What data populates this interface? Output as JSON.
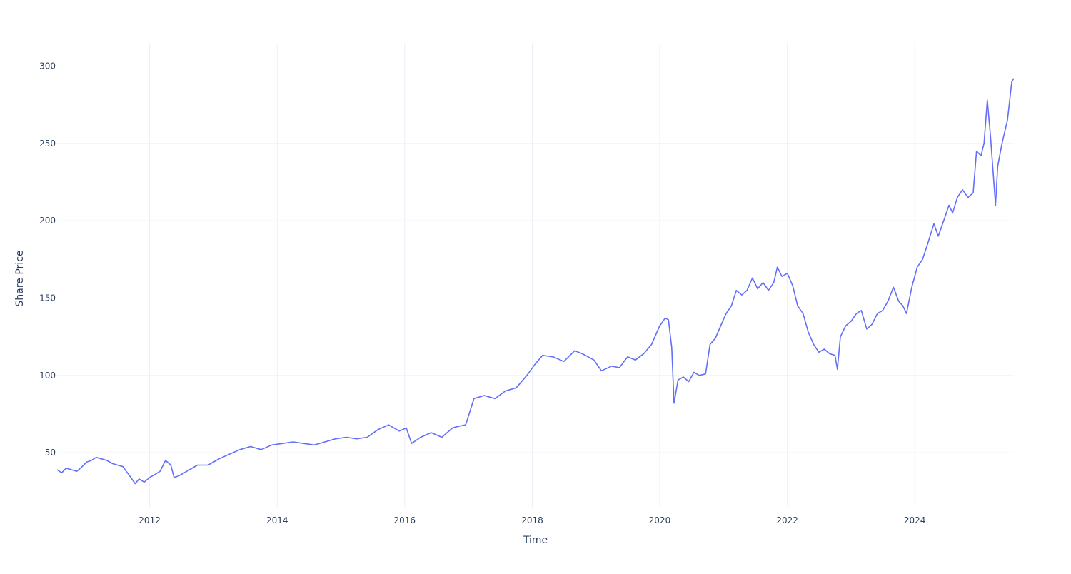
{
  "chart_data": {
    "type": "line",
    "title": "",
    "xlabel": "Time",
    "ylabel": "Share Price",
    "x_range": [
      "2010-07-20",
      "2025-07-22"
    ],
    "ylim": [
      15,
      315
    ],
    "x_ticks": [
      "2012",
      "2014",
      "2016",
      "2018",
      "2020",
      "2022",
      "2024"
    ],
    "y_ticks": [
      50,
      100,
      150,
      200,
      250,
      300
    ],
    "grid": true,
    "legend": "none",
    "line_color": "#636efa",
    "series": [
      {
        "x": [
          "2010-07-20",
          "2010-08-15",
          "2010-09-10",
          "2010-10-10",
          "2010-11-10",
          "2010-12-10",
          "2011-01-05",
          "2011-02-01",
          "2011-03-01",
          "2011-04-01",
          "2011-05-01",
          "2011-06-01",
          "2011-07-01",
          "2011-08-01",
          "2011-08-20",
          "2011-09-15",
          "2011-10-10",
          "2011-11-01",
          "2011-12-01",
          "2012-01-01",
          "2012-02-01",
          "2012-03-01",
          "2012-04-01",
          "2012-05-01",
          "2012-05-20",
          "2012-06-15",
          "2012-08-01",
          "2012-10-01",
          "2012-12-01",
          "2013-02-01",
          "2013-04-01",
          "2013-06-01",
          "2013-08-01",
          "2013-10-01",
          "2013-12-01",
          "2014-02-01",
          "2014-04-01",
          "2014-06-01",
          "2014-08-01",
          "2014-10-01",
          "2014-12-01",
          "2015-02-01",
          "2015-04-01",
          "2015-06-01",
          "2015-08-01",
          "2015-10-01",
          "2015-12-01",
          "2016-01-10",
          "2016-02-10",
          "2016-04-01",
          "2016-06-01",
          "2016-08-01",
          "2016-10-01",
          "2016-11-01",
          "2016-12-15",
          "2017-02-01",
          "2017-04-01",
          "2017-06-01",
          "2017-08-01",
          "2017-10-01",
          "2017-12-01",
          "2018-01-15",
          "2018-03-01",
          "2018-05-01",
          "2018-07-01",
          "2018-09-01",
          "2018-10-15",
          "2018-12-20",
          "2019-02-01",
          "2019-04-01",
          "2019-05-15",
          "2019-07-01",
          "2019-08-15",
          "2019-10-01",
          "2019-11-15",
          "2020-01-01",
          "2020-02-01",
          "2020-02-20",
          "2020-03-10",
          "2020-03-23",
          "2020-04-15",
          "2020-05-15",
          "2020-06-15",
          "2020-07-15",
          "2020-08-15",
          "2020-09-20",
          "2020-10-15",
          "2020-11-15",
          "2020-12-15",
          "2021-01-15",
          "2021-02-15",
          "2021-03-15",
          "2021-04-15",
          "2021-05-15",
          "2021-06-15",
          "2021-07-15",
          "2021-08-15",
          "2021-09-15",
          "2021-10-15",
          "2021-11-05",
          "2021-12-01",
          "2022-01-01",
          "2022-02-01",
          "2022-03-01",
          "2022-04-01",
          "2022-05-01",
          "2022-06-01",
          "2022-07-01",
          "2022-08-01",
          "2022-09-01",
          "2022-10-01",
          "2022-10-15",
          "2022-11-01",
          "2022-12-01",
          "2023-01-01",
          "2023-02-01",
          "2023-03-01",
          "2023-04-01",
          "2023-05-01",
          "2023-06-01",
          "2023-07-01",
          "2023-08-01",
          "2023-09-01",
          "2023-10-01",
          "2023-10-25",
          "2023-11-15",
          "2023-12-15",
          "2024-01-15",
          "2024-02-15",
          "2024-03-15",
          "2024-04-20",
          "2024-05-15",
          "2024-06-15",
          "2024-07-15",
          "2024-08-05",
          "2024-09-01",
          "2024-10-01",
          "2024-11-01",
          "2024-12-01",
          "2024-12-20",
          "2025-01-15",
          "2025-02-01",
          "2025-02-20",
          "2025-03-10",
          "2025-04-08",
          "2025-04-20",
          "2025-05-15",
          "2025-06-15",
          "2025-07-10",
          "2025-07-22"
        ],
        "y": [
          39,
          37,
          40,
          39,
          38,
          41,
          44,
          45,
          47,
          46,
          45,
          43,
          42,
          41,
          38,
          34,
          30,
          33,
          31,
          34,
          36,
          38,
          45,
          42,
          34,
          35,
          38,
          42,
          42,
          46,
          49,
          52,
          54,
          52,
          55,
          56,
          57,
          56,
          55,
          57,
          59,
          60,
          59,
          60,
          65,
          68,
          64,
          66,
          56,
          60,
          63,
          60,
          66,
          67,
          68,
          85,
          87,
          85,
          90,
          92,
          100,
          107,
          113,
          112,
          109,
          116,
          114,
          110,
          103,
          106,
          105,
          112,
          110,
          114,
          120,
          132,
          137,
          136,
          118,
          82,
          97,
          99,
          96,
          102,
          100,
          101,
          120,
          124,
          132,
          140,
          145,
          155,
          152,
          155,
          163,
          156,
          160,
          155,
          160,
          170,
          164,
          166,
          158,
          145,
          140,
          128,
          120,
          115,
          117,
          114,
          113,
          104,
          125,
          132,
          135,
          140,
          142,
          130,
          133,
          140,
          142,
          148,
          157,
          148,
          145,
          140,
          157,
          170,
          175,
          185,
          198,
          190,
          200,
          210,
          205,
          215,
          220,
          215,
          218,
          245,
          242,
          250,
          278,
          255,
          210,
          235,
          250,
          265,
          290,
          292
        ]
      }
    ]
  }
}
